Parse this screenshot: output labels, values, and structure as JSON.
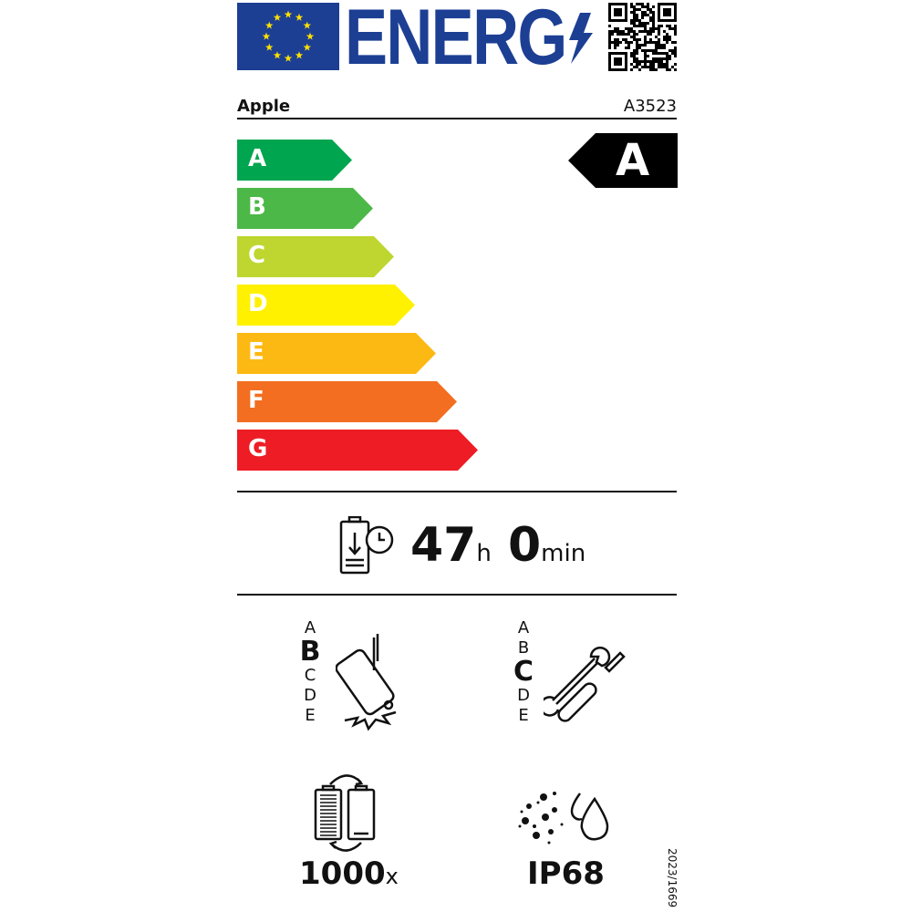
{
  "header": {
    "logo_text": "ENERG",
    "flag_icon": "eu-flag-icon",
    "qr_icon": "qr-code-icon"
  },
  "supplier": "Apple",
  "model": "A3523",
  "scale": {
    "classes": [
      {
        "letter": "A",
        "color": "#00a54f"
      },
      {
        "letter": "B",
        "color": "#4cb848"
      },
      {
        "letter": "C",
        "color": "#bed62f"
      },
      {
        "letter": "D",
        "color": "#fff100"
      },
      {
        "letter": "E",
        "color": "#fdb913"
      },
      {
        "letter": "F",
        "color": "#f36e21"
      },
      {
        "letter": "G",
        "color": "#ee1c25"
      }
    ],
    "rating": "A"
  },
  "battery_endurance": {
    "hours": "47",
    "hours_unit": "h",
    "minutes": "0",
    "minutes_unit": "min"
  },
  "drop_resistance": {
    "scale": [
      "A",
      "B",
      "C",
      "D",
      "E"
    ],
    "class": "B"
  },
  "repairability": {
    "scale": [
      "A",
      "B",
      "C",
      "D",
      "E"
    ],
    "class": "C"
  },
  "battery_cycles": {
    "value": "1000",
    "unit": "x"
  },
  "ingress_protection": "IP68",
  "regulation": "2023/1669"
}
